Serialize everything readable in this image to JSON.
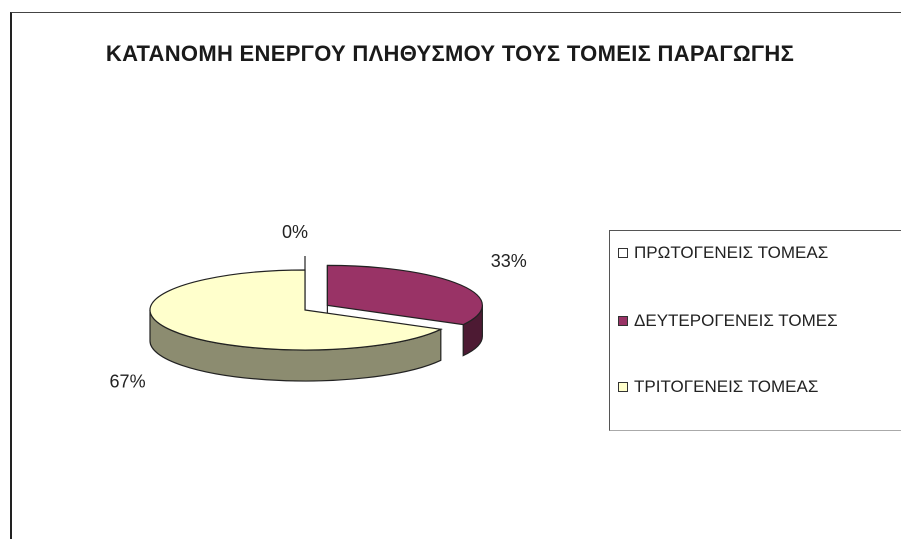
{
  "chart_data": {
    "type": "pie",
    "title": "ΚΑΤΑΝΟΜΗ ΕΝΕΡΓΟΥ ΠΛΗΘΥΣΜΟΥ ΤΟΥΣ ΤΟΜΕΙΣ ΠΑΡΑΓΩΓΗΣ",
    "three_d": true,
    "categories": [
      "ΠΡΩΤΟΓΕΝΕΙΣ ΤΟΜΕΑΣ",
      "ΔΕΥΤΕΡΟΓΕΝΕΙΣ ΤΟΜΕΣ",
      "ΤΡΙΤΟΓΕΝΕΙΣ ΤΟΜΕΑΣ"
    ],
    "values": [
      0,
      33,
      67
    ],
    "data_labels": [
      "0%",
      "33%",
      "67%"
    ],
    "colors": [
      "#FFFFFF",
      "#993366",
      "#FFFFCC"
    ],
    "legend_position": "right"
  }
}
